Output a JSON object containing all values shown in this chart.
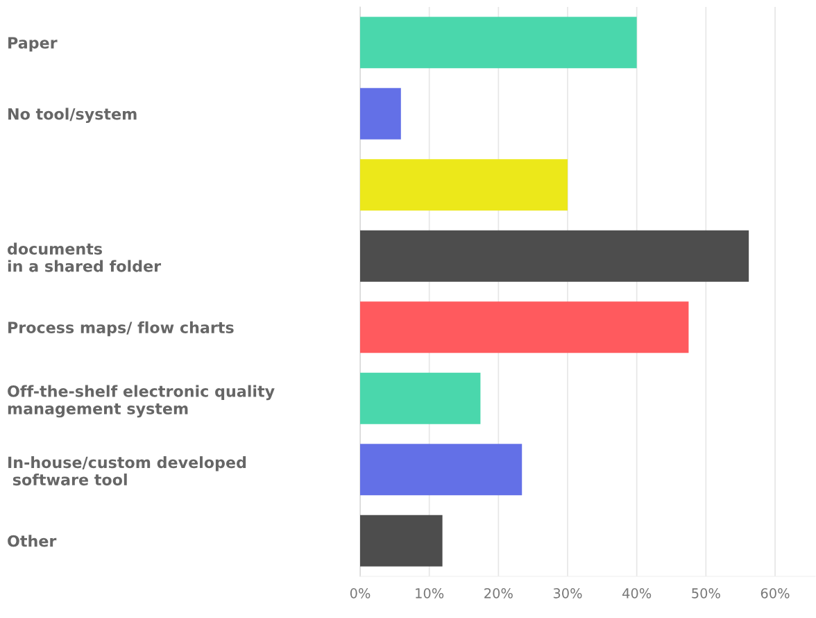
{
  "chart_data": {
    "type": "bar",
    "orientation": "horizontal",
    "categories": [
      "Paper",
      "No tool/system",
      null,
      "documents\nin a shared folder",
      "Process maps/ flow charts",
      "Off-the-shelf electronic quality\nmanagement system",
      "In-house/custom developed\n software tool",
      "Other"
    ],
    "values": [
      40,
      5.9,
      30,
      56.2,
      47.5,
      17.4,
      23.4,
      11.9
    ],
    "colors": [
      "#4ad7ac",
      "#6370e7",
      "#ece81a",
      "#4d4d4d",
      "#ff5a5e",
      "#4ad7ac",
      "#6370e7",
      "#4d4d4d"
    ],
    "xlim": [
      0,
      65.8
    ],
    "xticks": [
      {
        "value": 0,
        "label": "0%"
      },
      {
        "value": 10,
        "label": "10%"
      },
      {
        "value": 20,
        "label": "20%"
      },
      {
        "value": 30,
        "label": "30%"
      },
      {
        "value": 40,
        "label": "40%"
      },
      {
        "value": 50,
        "label": "50%"
      },
      {
        "value": 60,
        "label": "60%"
      }
    ],
    "grid": "x",
    "legend": false
  }
}
